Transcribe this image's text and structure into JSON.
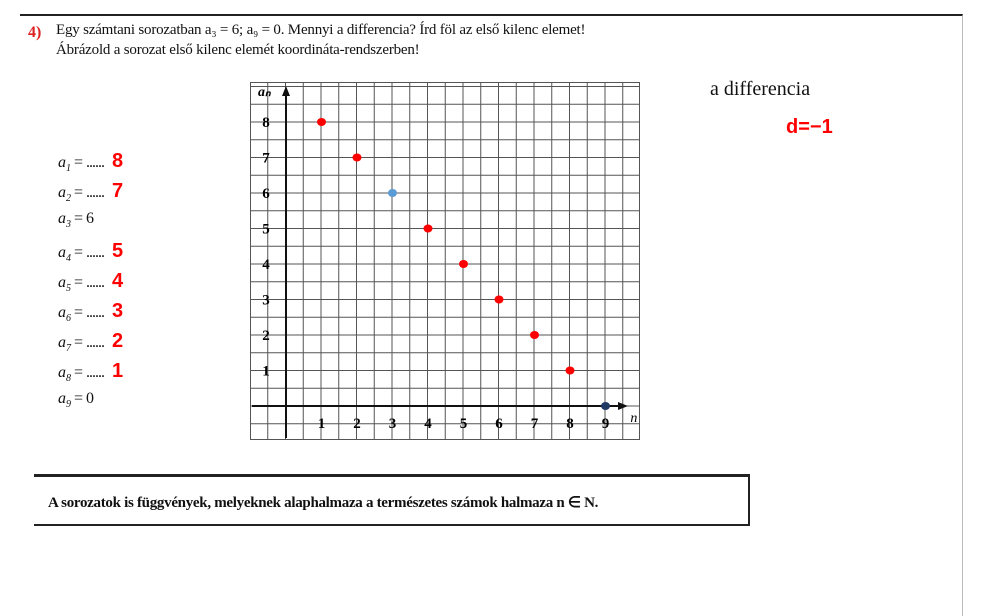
{
  "task": {
    "number_mark": "4)",
    "line1": "Egy számtani sorozatban a₃ = 6; a₉ = 0. Mennyi a differencia? Írd föl az első kilenc elemet!",
    "line2": "Ábrázold a sorozat első kilenc elemét koordináta-rendszerben!"
  },
  "difference": {
    "label": "a differencia",
    "answer": "d=−1"
  },
  "terms": [
    {
      "name": "a",
      "index": "1",
      "given": "......",
      "answer": "8"
    },
    {
      "name": "a",
      "index": "2",
      "given": "......",
      "answer": "7"
    },
    {
      "name": "a",
      "index": "3",
      "given": "6",
      "answer": ""
    },
    {
      "name": "a",
      "index": "4",
      "given": "......",
      "answer": "5"
    },
    {
      "name": "a",
      "index": "5",
      "given": "......",
      "answer": "4"
    },
    {
      "name": "a",
      "index": "6",
      "given": "......",
      "answer": "3"
    },
    {
      "name": "a",
      "index": "7",
      "given": "......",
      "answer": "2"
    },
    {
      "name": "a",
      "index": "8",
      "given": "......",
      "answer": "1"
    },
    {
      "name": "a",
      "index": "9",
      "given": "0",
      "answer": ""
    }
  ],
  "chart_data": {
    "type": "scatter",
    "xlabel": "n",
    "ylabel": "aₙ",
    "xlim": [
      -1,
      10
    ],
    "ylim": [
      -1,
      9
    ],
    "x_ticks": [
      "1",
      "2",
      "3",
      "4",
      "5",
      "6",
      "7",
      "8",
      "9"
    ],
    "y_ticks": [
      "1",
      "2",
      "3",
      "4",
      "5",
      "6",
      "7",
      "8"
    ],
    "grid": true,
    "points": [
      {
        "x": 1,
        "y": 8,
        "color": "#ff0000"
      },
      {
        "x": 2,
        "y": 7,
        "color": "#ff0000"
      },
      {
        "x": 3,
        "y": 6,
        "color": "#5b9bd5"
      },
      {
        "x": 4,
        "y": 5,
        "color": "#ff0000"
      },
      {
        "x": 5,
        "y": 4,
        "color": "#ff0000"
      },
      {
        "x": 6,
        "y": 3,
        "color": "#ff0000"
      },
      {
        "x": 7,
        "y": 2,
        "color": "#ff0000"
      },
      {
        "x": 8,
        "y": 1,
        "color": "#ff0000"
      },
      {
        "x": 9,
        "y": 0,
        "color": "#1f3864"
      }
    ]
  },
  "note": "A sorozatok is függvények, melyeknek alaphalmaza a természetes számok halmaza n ∈ N."
}
